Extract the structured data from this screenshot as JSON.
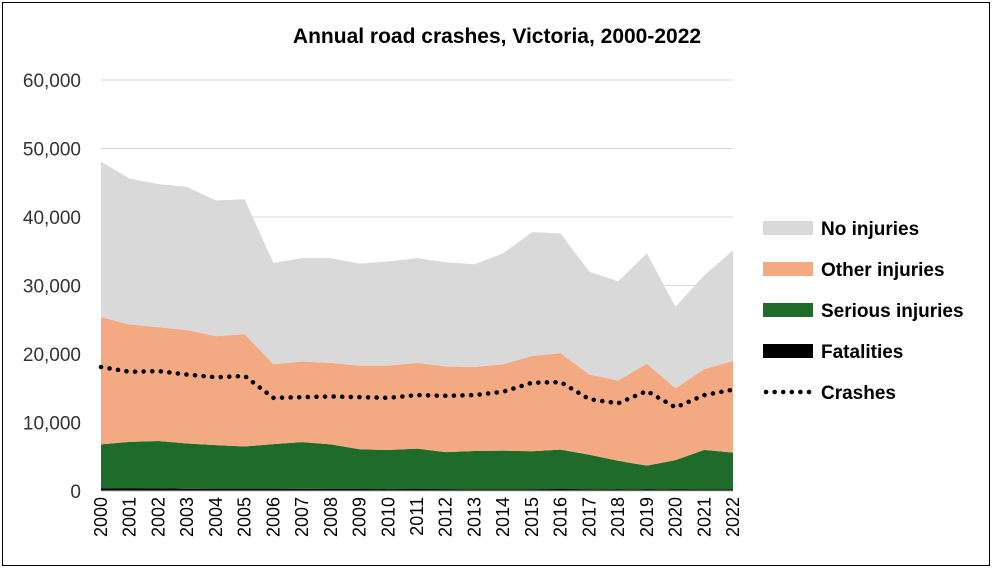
{
  "chart_data": {
    "type": "area",
    "title": "Annual road crashes, Victoria, 2000-2022",
    "xlabel": "",
    "ylabel": "",
    "ylim": [
      0,
      60000
    ],
    "yticks": [
      0,
      10000,
      20000,
      30000,
      40000,
      50000,
      60000
    ],
    "ytick_labels": [
      "0",
      "10,000",
      "20,000",
      "30,000",
      "40,000",
      "50,000",
      "60,000"
    ],
    "categories": [
      "2000",
      "2001",
      "2002",
      "2003",
      "2004",
      "2005",
      "2006",
      "2007",
      "2008",
      "2009",
      "2010",
      "2011",
      "2012",
      "2013",
      "2014",
      "2015",
      "2016",
      "2017",
      "2018",
      "2019",
      "2020",
      "2021",
      "2022"
    ],
    "stacked": true,
    "gridlines": true,
    "legend_position": "right",
    "series": [
      {
        "name": "Fatalities",
        "kind": "area",
        "color": "#000000",
        "values": [
          400,
          420,
          400,
          330,
          340,
          350,
          340,
          330,
          300,
          290,
          280,
          290,
          280,
          240,
          250,
          250,
          290,
          260,
          210,
          270,
          210,
          230,
          240
        ]
      },
      {
        "name": "Serious injuries",
        "kind": "area",
        "color": "#1e6b2a",
        "values": [
          6400,
          6750,
          6900,
          6600,
          6350,
          6150,
          6500,
          6800,
          6500,
          5800,
          5700,
          5900,
          5400,
          5600,
          5650,
          5550,
          5750,
          5040,
          4200,
          3430,
          4290,
          5770,
          5360
        ]
      },
      {
        "name": "Other injuries",
        "kind": "area",
        "color": "#f3a982",
        "values": [
          18600,
          17130,
          16600,
          16570,
          15910,
          16400,
          11660,
          11770,
          11900,
          12210,
          12320,
          12510,
          12520,
          12260,
          12600,
          13900,
          14060,
          11700,
          11700,
          14900,
          10500,
          11800,
          13400
        ]
      },
      {
        "name": "No injuries",
        "kind": "area",
        "color": "#d9d9d9",
        "values": [
          22700,
          21300,
          20900,
          20900,
          19800,
          19700,
          14800,
          15100,
          15300,
          14900,
          15200,
          15300,
          15200,
          15000,
          16200,
          18100,
          17500,
          15000,
          14500,
          16100,
          11900,
          13700,
          16100
        ]
      },
      {
        "name": "Crashes",
        "kind": "line",
        "color": "#000000",
        "values": [
          18100,
          17400,
          17500,
          17000,
          16600,
          16800,
          13600,
          13700,
          13800,
          13700,
          13600,
          14000,
          13900,
          14000,
          14500,
          15800,
          15900,
          13400,
          12800,
          14600,
          12200,
          14000,
          14800
        ]
      }
    ],
    "legend_order": [
      "No injuries",
      "Other injuries",
      "Serious injuries",
      "Fatalities",
      "Crashes"
    ]
  }
}
